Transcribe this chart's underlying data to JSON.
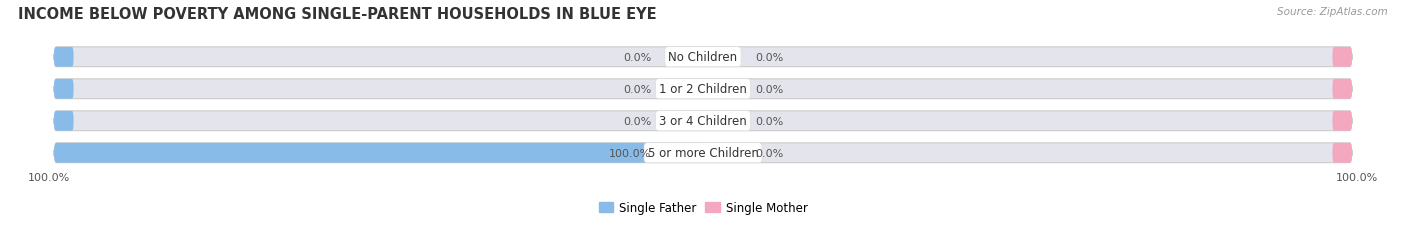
{
  "title": "INCOME BELOW POVERTY AMONG SINGLE-PARENT HOUSEHOLDS IN BLUE EYE",
  "source": "Source: ZipAtlas.com",
  "categories": [
    "No Children",
    "1 or 2 Children",
    "3 or 4 Children",
    "5 or more Children"
  ],
  "father_values": [
    0.0,
    0.0,
    0.0,
    100.0
  ],
  "mother_values": [
    0.0,
    0.0,
    0.0,
    0.0
  ],
  "father_color": "#88bbe8",
  "mother_color": "#f4a8bf",
  "bar_bg_color": "#e4e4ec",
  "label_color": "#555555",
  "title_color": "#333333",
  "source_color": "#999999",
  "white": "#ffffff",
  "bar_height": 0.62,
  "bar_gap": 0.38,
  "xlim_left": -100,
  "xlim_right": 100,
  "title_fontsize": 10.5,
  "label_fontsize": 8.0,
  "category_fontsize": 8.5,
  "legend_fontsize": 8.5,
  "source_fontsize": 7.5,
  "axis_label_fontsize": 8.0,
  "background_color": "#ffffff",
  "fig_width": 14.06,
  "fig_height": 2.32,
  "min_bar_display": 3.0
}
